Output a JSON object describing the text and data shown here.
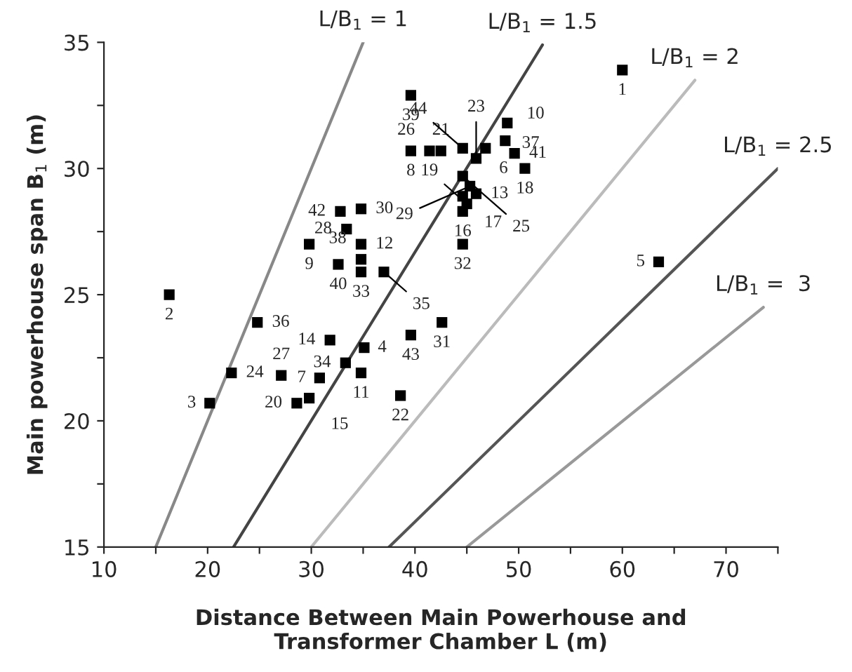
{
  "chart_data": {
    "type": "scatter",
    "xlabel": "Distance Between Main Powerhouse and\nTransformer Chamber L (m)",
    "ylabel": "Main powerhouse span B$_{1}$ (m)",
    "xlim": [
      10,
      75
    ],
    "ylim": [
      15,
      35
    ],
    "xticks": [
      10,
      {
        "value": 15,
        "label": null
      },
      20,
      {
        "value": 25,
        "label": null
      },
      30,
      {
        "value": 35,
        "label": null
      },
      40,
      {
        "value": 45,
        "label": null
      },
      50,
      {
        "value": 55,
        "label": null
      },
      60,
      {
        "value": 65,
        "label": null
      },
      70,
      {
        "value": 75,
        "label": null
      }
    ],
    "yticks": [
      15,
      {
        "value": 17.5,
        "label": null
      },
      20,
      {
        "value": 22.5,
        "label": null
      },
      25,
      {
        "value": 27.5,
        "label": null
      },
      30,
      {
        "value": 32.5,
        "label": null
      },
      35
    ],
    "grid": false,
    "legend": false,
    "marker": "square",
    "series": [
      {
        "type": "scatter",
        "color": "#000000",
        "x": [
          60.0,
          16.3,
          20.2,
          35.1,
          63.5,
          46.8,
          30.8,
          39.6,
          29.8,
          48.7,
          34.8,
          34.8,
          45.9,
          31.8,
          29.8,
          44.6,
          44.6,
          50.6,
          45.0,
          28.6,
          42.5,
          38.6,
          45.9,
          22.3,
          44.6,
          41.4,
          27.1,
          33.4,
          45.3,
          34.8,
          42.6,
          44.6,
          34.8,
          33.3,
          37.0,
          24.8,
          48.9,
          34.8,
          39.6,
          32.6,
          49.6,
          32.8,
          39.6,
          44.6
        ],
        "values": [
          33.9,
          25.0,
          20.7,
          22.9,
          26.3,
          30.8,
          21.7,
          30.7,
          27.0,
          31.1,
          21.9,
          27.0,
          29.0,
          23.2,
          20.9,
          28.3,
          28.9,
          30.0,
          28.6,
          20.7,
          30.7,
          21.0,
          30.4,
          21.9,
          29.7,
          30.7,
          21.8,
          27.6,
          29.3,
          28.4,
          23.9,
          27.0,
          25.9,
          22.3,
          25.9,
          23.9,
          31.8,
          26.4,
          32.9,
          26.2,
          30.6,
          28.3,
          23.4,
          30.8
        ]
      },
      {
        "type": "line",
        "name": "L/B$_{1}$ = 1",
        "color": "#888888",
        "line_style": "solid",
        "marker": "none",
        "x": [
          15,
          35
        ],
        "values": [
          15,
          35
        ]
      },
      {
        "type": "line",
        "name": "L/B$_{1}$ = 1.5",
        "color": "#444444",
        "line_style": "solid",
        "marker": "none",
        "x": [
          22.5,
          52.3
        ],
        "values": [
          15,
          34.9
        ]
      },
      {
        "type": "line",
        "name": "L/B$_{1}$ = 2",
        "color": "#bbbbbb",
        "line_style": "solid",
        "marker": "none",
        "x": [
          30,
          67
        ],
        "values": [
          15,
          33.5
        ]
      },
      {
        "type": "line",
        "name": "L/B$_{1}$ = 2.5",
        "color": "#555555",
        "line_style": "solid",
        "marker": "none",
        "x": [
          37.5,
          75
        ],
        "values": [
          15,
          30
        ]
      },
      {
        "type": "line",
        "name": "L/B$_{1}$ =  3",
        "color": "#999999",
        "line_style": "solid",
        "marker": "none",
        "x": [
          45,
          73.6
        ],
        "values": [
          15,
          24.5
        ]
      }
    ],
    "annotations": [
      {
        "text": "1",
        "x": 60.0,
        "y": 33.9
      },
      {
        "text": "2",
        "x": 16.3,
        "y": 25.0
      },
      {
        "text": "3",
        "x": 20.2,
        "y": 20.7
      },
      {
        "text": "4",
        "x": 35.1,
        "y": 22.9
      },
      {
        "text": "5",
        "x": 63.5,
        "y": 26.3
      },
      {
        "text": "6",
        "x": 46.8,
        "y": 30.8
      },
      {
        "text": "7",
        "x": 30.8,
        "y": 21.7
      },
      {
        "text": "8",
        "x": 39.6,
        "y": 30.7
      },
      {
        "text": "9",
        "x": 29.8,
        "y": 27.0
      },
      {
        "text": "10",
        "x": 48.7,
        "y": 31.1
      },
      {
        "text": "11",
        "x": 34.8,
        "y": 21.9
      },
      {
        "text": "12",
        "x": 34.8,
        "y": 27.0
      },
      {
        "text": "13",
        "x": 45.9,
        "y": 29.0
      },
      {
        "text": "14",
        "x": 31.8,
        "y": 23.2
      },
      {
        "text": "15",
        "x": 29.8,
        "y": 20.9
      },
      {
        "text": "16",
        "x": 44.6,
        "y": 28.3
      },
      {
        "text": "17",
        "x": 44.6,
        "y": 28.9
      },
      {
        "text": "18",
        "x": 50.6,
        "y": 30.0
      },
      {
        "text": "19",
        "x": 45.0,
        "y": 28.6
      },
      {
        "text": "20",
        "x": 28.6,
        "y": 20.7
      },
      {
        "text": "21",
        "x": 42.5,
        "y": 30.7
      },
      {
        "text": "22",
        "x": 38.6,
        "y": 21.0
      },
      {
        "text": "23",
        "x": 45.9,
        "y": 30.4
      },
      {
        "text": "24",
        "x": 22.3,
        "y": 21.9
      },
      {
        "text": "25",
        "x": 44.6,
        "y": 29.7
      },
      {
        "text": "26",
        "x": 41.4,
        "y": 30.7
      },
      {
        "text": "27",
        "x": 27.1,
        "y": 21.8
      },
      {
        "text": "28",
        "x": 33.4,
        "y": 27.6
      },
      {
        "text": "29",
        "x": 45.3,
        "y": 29.3
      },
      {
        "text": "30",
        "x": 34.8,
        "y": 28.4
      },
      {
        "text": "31",
        "x": 42.6,
        "y": 23.9
      },
      {
        "text": "32",
        "x": 44.6,
        "y": 27.0
      },
      {
        "text": "33",
        "x": 34.8,
        "y": 25.9
      },
      {
        "text": "34",
        "x": 33.3,
        "y": 22.3
      },
      {
        "text": "35",
        "x": 37.0,
        "y": 25.9
      },
      {
        "text": "36",
        "x": 24.8,
        "y": 23.9
      },
      {
        "text": "37",
        "x": 48.9,
        "y": 31.8
      },
      {
        "text": "38",
        "x": 34.8,
        "y": 26.4
      },
      {
        "text": "39",
        "x": 39.6,
        "y": 32.9
      },
      {
        "text": "40",
        "x": 32.6,
        "y": 26.2
      },
      {
        "text": "41",
        "x": 49.6,
        "y": 30.6
      },
      {
        "text": "42",
        "x": 32.8,
        "y": 28.3
      },
      {
        "text": "43",
        "x": 39.6,
        "y": 23.4
      },
      {
        "text": "44",
        "x": 44.6,
        "y": 30.8
      }
    ]
  }
}
